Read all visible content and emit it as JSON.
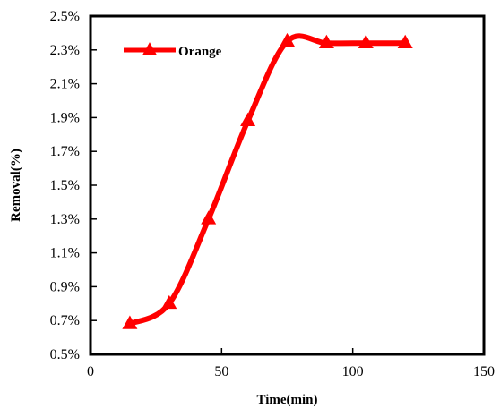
{
  "chart_data": {
    "type": "line",
    "title": "",
    "xlabel": "Time(min)",
    "ylabel": "Removal(%)",
    "xlim": [
      0,
      150
    ],
    "ylim": [
      0.5,
      2.5
    ],
    "x_ticks": [
      0,
      50,
      100,
      150
    ],
    "y_ticks": [
      0.5,
      0.7,
      0.9,
      1.1,
      1.3,
      1.5,
      1.7,
      1.9,
      2.1,
      2.3,
      2.5
    ],
    "y_tick_labels": [
      "0.5%",
      "0.7%",
      "0.9%",
      "1.1%",
      "1.3%",
      "1.5%",
      "1.7%",
      "1.9%",
      "2.1%",
      "2.3%",
      "2.5%"
    ],
    "x_tick_labels": [
      "0",
      "50",
      "100",
      "150"
    ],
    "grid": false,
    "legend_position": "top-left",
    "series": [
      {
        "name": "Orange",
        "color": "#ff0000",
        "marker": "triangle",
        "smooth": true,
        "x": [
          15,
          30,
          45,
          60,
          75,
          90,
          105,
          120
        ],
        "y": [
          0.68,
          0.8,
          1.3,
          1.88,
          2.35,
          2.34,
          2.34,
          2.34
        ]
      }
    ]
  }
}
